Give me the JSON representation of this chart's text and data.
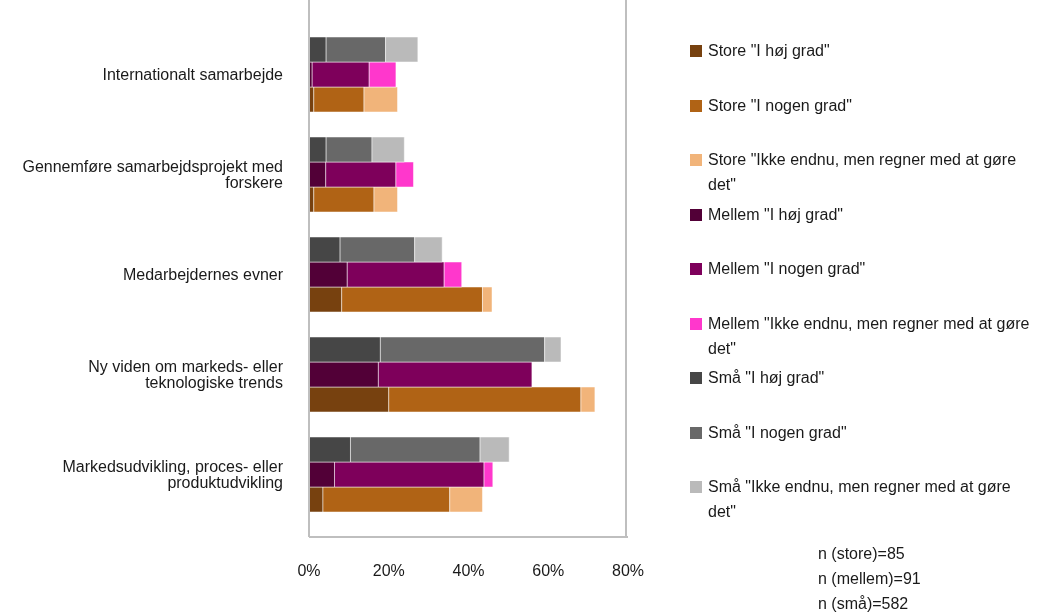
{
  "chart_data": {
    "type": "bar",
    "orientation": "horizontal",
    "stacked": true,
    "categories": [
      null,
      "Internationalt samarbejde",
      null,
      null,
      null,
      "Gennemføre samarbejdsprojekt med forskere",
      null,
      null,
      null,
      "Medarbejdernes evner",
      null,
      null,
      null,
      "Ny viden om markeds- eller teknologiske trends",
      null,
      null,
      null,
      "Markedsudvikling, proces- eller produktudvikling",
      null,
      null
    ],
    "series": [
      {
        "name": "Store \"I høj grad\"",
        "color": "#77410f",
        "values": [
          null,
          null,
          1.2,
          null,
          null,
          null,
          1.2,
          null,
          null,
          null,
          8.2,
          null,
          null,
          null,
          20.0,
          null,
          null,
          null,
          3.5,
          null
        ]
      },
      {
        "name": "Store \"I nogen grad\"",
        "color": "#b06315",
        "values": [
          null,
          null,
          12.6,
          null,
          null,
          null,
          15.1,
          null,
          null,
          null,
          35.3,
          null,
          null,
          null,
          48.2,
          null,
          null,
          null,
          31.8,
          null
        ]
      },
      {
        "name": "Store \"Ikke endnu, men regner med at gøre det\"",
        "color": "#f1b47a",
        "values": [
          null,
          null,
          8.4,
          null,
          null,
          null,
          5.9,
          null,
          null,
          null,
          2.4,
          null,
          null,
          null,
          3.5,
          null,
          null,
          null,
          8.2,
          null
        ]
      },
      {
        "name": "Mellem \"I høj grad\"",
        "color": "#520037",
        "values": [
          null,
          0.8,
          null,
          null,
          null,
          4.2,
          null,
          null,
          null,
          9.6,
          null,
          null,
          null,
          17.4,
          null,
          null,
          null,
          6.4,
          null,
          null
        ]
      },
      {
        "name": "Mellem \"I nogen grad\"",
        "color": "#7e005b",
        "values": [
          null,
          14.3,
          null,
          null,
          null,
          17.6,
          null,
          null,
          null,
          24.3,
          null,
          null,
          null,
          38.5,
          null,
          null,
          null,
          37.5,
          null,
          null
        ]
      },
      {
        "name": "Mellem \"Ikke endnu, men regner med at gøre det\"",
        "color": "#ff37cc",
        "values": [
          null,
          6.7,
          null,
          null,
          null,
          4.4,
          null,
          null,
          null,
          4.4,
          null,
          null,
          null,
          null,
          null,
          null,
          null,
          2.2,
          null,
          null
        ]
      },
      {
        "name": "Små \"I høj grad\"",
        "color": "#464646",
        "values": [
          4.3,
          null,
          null,
          null,
          4.3,
          null,
          null,
          null,
          7.8,
          null,
          null,
          null,
          17.9,
          null,
          null,
          null,
          10.4,
          null,
          null,
          null
        ]
      },
      {
        "name": "Små \"I nogen grad\"",
        "color": "#686868",
        "values": [
          14.9,
          null,
          null,
          null,
          11.5,
          null,
          null,
          null,
          18.7,
          null,
          null,
          null,
          41.2,
          null,
          null,
          null,
          32.5,
          null,
          null,
          null
        ]
      },
      {
        "name": "Små \"Ikke endnu, men regner med at gøre det\"",
        "color": "#bababa",
        "values": [
          8.1,
          null,
          null,
          null,
          8.1,
          null,
          null,
          null,
          6.9,
          null,
          null,
          null,
          4.1,
          null,
          null,
          null,
          7.3,
          null,
          null,
          null
        ]
      }
    ],
    "xlim": [
      0,
      80
    ],
    "xticks": [
      {
        "value": 0,
        "label": "0%"
      },
      {
        "value": 20,
        "label": "20%"
      },
      {
        "value": 40,
        "label": "40%"
      },
      {
        "value": 60,
        "label": "60%"
      },
      {
        "value": 80,
        "label": "80%"
      }
    ],
    "legend": "right",
    "annotations": [
      "n (store)=85",
      "n (mellem)=91",
      "n (små)=582"
    ]
  }
}
